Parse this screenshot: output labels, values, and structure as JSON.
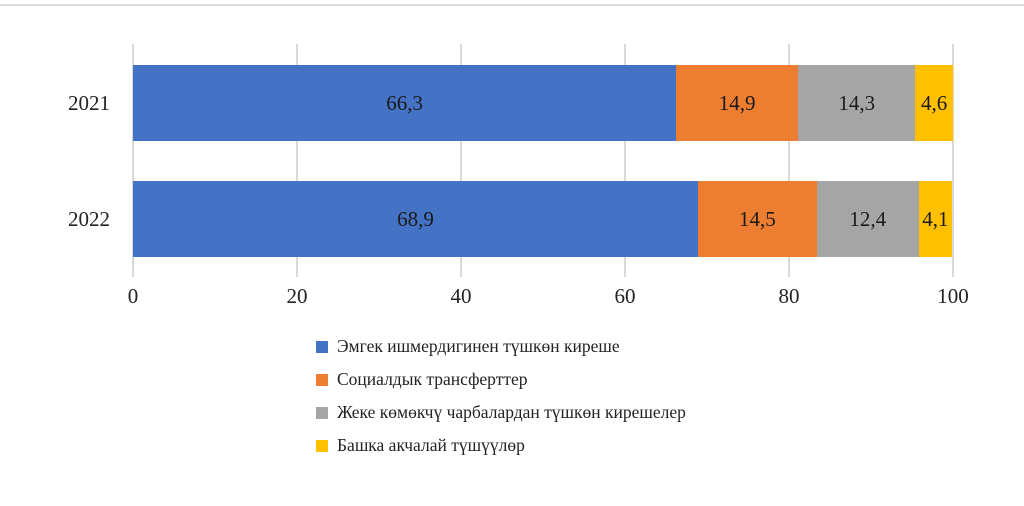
{
  "page": {
    "background": "#ffffff",
    "top_divider_color": "#d9d9d9"
  },
  "chart_data": {
    "type": "bar",
    "orientation": "horizontal",
    "stacked": true,
    "title": "",
    "xlabel": "",
    "ylabel": "",
    "categories": [
      "2021",
      "2022"
    ],
    "series": [
      {
        "name": "Эмгек ишмердигинен түшкөн киреше",
        "color": "#4472C4",
        "values": [
          66.3,
          68.9
        ],
        "labels": [
          "66,3",
          "68,9"
        ]
      },
      {
        "name": "Социалдык трансферттер",
        "color": "#ED7D31",
        "values": [
          14.9,
          14.5
        ],
        "labels": [
          "14,9",
          "14,5"
        ]
      },
      {
        "name": "Жеке көмөкчү чарбалардан түшкөн кирешелер",
        "color": "#A5A5A5",
        "values": [
          14.3,
          12.4
        ],
        "labels": [
          "14,3",
          "12,4"
        ]
      },
      {
        "name": "Башка акчалай түшүүлөр",
        "color": "#FFC000",
        "values": [
          4.6,
          4.1
        ],
        "labels": [
          "4,6",
          "4,1"
        ]
      }
    ],
    "x_axis": {
      "min": 0,
      "max": 100,
      "ticks": [
        "0",
        "20",
        "40",
        "60",
        "80",
        "100"
      ]
    },
    "grid": true,
    "gridline_color": "#d9d9d9",
    "value_label_color": "#1a1a1a",
    "legend_position": "bottom-left"
  }
}
